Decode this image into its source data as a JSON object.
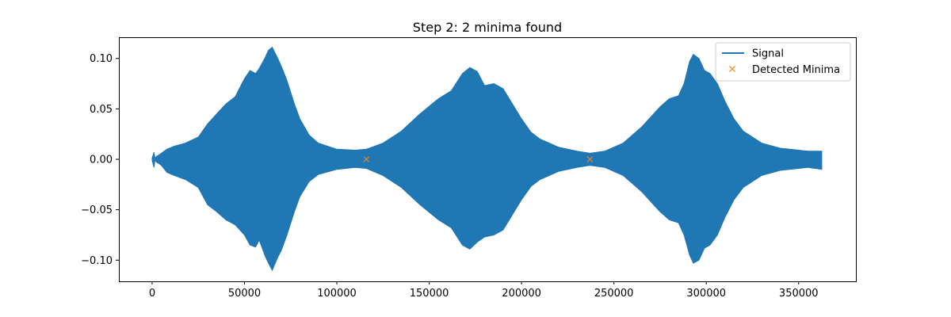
{
  "chart_data": {
    "type": "line",
    "title": "Step 2: 2 minima found",
    "xlabel": "",
    "ylabel": "",
    "xlim": [
      -18000,
      381000
    ],
    "ylim": [
      -0.121,
      0.121
    ],
    "x_ticks": [
      0,
      50000,
      100000,
      150000,
      200000,
      250000,
      300000,
      350000
    ],
    "x_tick_labels": [
      "0",
      "50000",
      "100000",
      "150000",
      "200000",
      "250000",
      "300000",
      "350000"
    ],
    "y_ticks": [
      -0.1,
      -0.05,
      0.0,
      0.05,
      0.1
    ],
    "y_tick_labels": [
      "−0.10",
      "−0.05",
      "0.00",
      "0.05",
      "0.10"
    ],
    "grid": false,
    "legend_position": "top-right",
    "series": [
      {
        "name": "Signal",
        "style": "filled-envelope",
        "color": "#1f77b4",
        "upper_envelope": {
          "x": [
            0,
            1000,
            1500,
            2500,
            3500,
            5000,
            8000,
            12000,
            18000,
            25000,
            30000,
            35000,
            40000,
            45000,
            50000,
            53000,
            56000,
            58000,
            61000,
            63000,
            65000,
            68000,
            70000,
            73000,
            77000,
            80000,
            85000,
            90000,
            100000,
            110000,
            116000,
            125000,
            135000,
            145000,
            155000,
            162000,
            168000,
            172000,
            176000,
            180000,
            185000,
            190000,
            195000,
            200000,
            205000,
            210000,
            220000,
            230000,
            237000,
            245000,
            255000,
            265000,
            275000,
            280000,
            285000,
            288000,
            291000,
            293000,
            296000,
            299000,
            302000,
            306000,
            310000,
            315000,
            320000,
            330000,
            340000,
            350000,
            355000,
            362500
          ],
          "y": [
            0.001,
            0.007,
            0.001,
            0.003,
            0.004,
            0.006,
            0.01,
            0.013,
            0.016,
            0.022,
            0.035,
            0.045,
            0.055,
            0.062,
            0.08,
            0.088,
            0.085,
            0.09,
            0.1,
            0.108,
            0.111,
            0.1,
            0.092,
            0.078,
            0.055,
            0.04,
            0.024,
            0.016,
            0.01,
            0.009,
            0.01,
            0.016,
            0.028,
            0.045,
            0.06,
            0.068,
            0.085,
            0.091,
            0.087,
            0.073,
            0.075,
            0.07,
            0.055,
            0.04,
            0.027,
            0.02,
            0.012,
            0.008,
            0.006,
            0.008,
            0.016,
            0.032,
            0.052,
            0.06,
            0.063,
            0.075,
            0.097,
            0.104,
            0.1,
            0.088,
            0.085,
            0.075,
            0.058,
            0.04,
            0.028,
            0.016,
            0.011,
            0.009,
            0.008,
            0.008
          ]
        },
        "lower_envelope": {
          "x": [
            0,
            1000,
            1500,
            2500,
            3500,
            5000,
            8000,
            12000,
            18000,
            25000,
            30000,
            35000,
            40000,
            45000,
            50000,
            53000,
            56000,
            58000,
            61000,
            63000,
            65000,
            68000,
            70000,
            73000,
            77000,
            80000,
            85000,
            90000,
            100000,
            110000,
            116000,
            125000,
            135000,
            145000,
            155000,
            162000,
            168000,
            172000,
            176000,
            180000,
            185000,
            190000,
            195000,
            200000,
            205000,
            210000,
            220000,
            230000,
            237000,
            245000,
            255000,
            265000,
            275000,
            280000,
            285000,
            288000,
            291000,
            293000,
            296000,
            299000,
            302000,
            306000,
            310000,
            315000,
            320000,
            330000,
            340000,
            350000,
            355000,
            362500
          ],
          "y": [
            -0.001,
            -0.008,
            -0.001,
            -0.003,
            -0.004,
            -0.006,
            -0.013,
            -0.016,
            -0.02,
            -0.028,
            -0.045,
            -0.052,
            -0.06,
            -0.065,
            -0.075,
            -0.085,
            -0.087,
            -0.08,
            -0.095,
            -0.103,
            -0.11,
            -0.097,
            -0.09,
            -0.075,
            -0.052,
            -0.037,
            -0.022,
            -0.015,
            -0.01,
            -0.008,
            -0.009,
            -0.016,
            -0.028,
            -0.045,
            -0.06,
            -0.068,
            -0.085,
            -0.089,
            -0.082,
            -0.077,
            -0.075,
            -0.07,
            -0.055,
            -0.04,
            -0.027,
            -0.02,
            -0.012,
            -0.008,
            -0.006,
            -0.008,
            -0.016,
            -0.032,
            -0.052,
            -0.06,
            -0.063,
            -0.075,
            -0.095,
            -0.103,
            -0.1,
            -0.088,
            -0.085,
            -0.075,
            -0.058,
            -0.04,
            -0.028,
            -0.016,
            -0.011,
            -0.009,
            -0.008,
            -0.01
          ]
        }
      },
      {
        "name": "Detected Minima",
        "style": "markers",
        "marker": "x",
        "color": "#ff7f0e",
        "points": [
          {
            "x": 116000,
            "y": 0.0
          },
          {
            "x": 237000,
            "y": 0.0
          }
        ]
      }
    ]
  }
}
